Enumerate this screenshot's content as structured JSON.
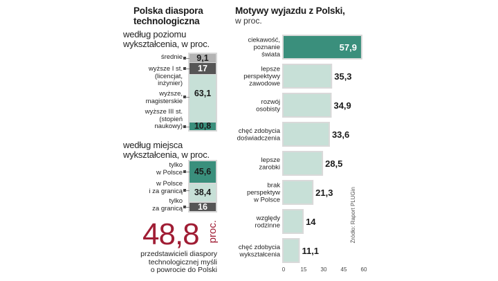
{
  "left": {
    "title_line1": "Polska diaspora",
    "title_line2": "technologiczna",
    "education": {
      "heading_line1": "według poziomu",
      "heading_line2": "wykształcenia, w proc.",
      "items": [
        {
          "label_lines": [
            "średnie"
          ],
          "value": "9,1"
        },
        {
          "label_lines": [
            "wyższe I st.",
            "(licencjat,",
            "inżynier)"
          ],
          "value": "17"
        },
        {
          "label_lines": [
            "wyższe,",
            "magisterskie"
          ],
          "value": "63,1"
        },
        {
          "label_lines": [
            "wyższe III st.",
            "(stopień",
            "naukowy)"
          ],
          "value": "10,8"
        }
      ]
    },
    "location": {
      "heading_line1": "według miejsca",
      "heading_line2": "wykształcenia, w proc.",
      "items": [
        {
          "label_lines": [
            "tylko",
            "w Polsce"
          ],
          "value": "45,6"
        },
        {
          "label_lines": [
            "w Polsce",
            "i za granicą"
          ],
          "value": "38,4"
        },
        {
          "label_lines": [
            "tylko",
            "za granicą"
          ],
          "value": "16"
        }
      ]
    },
    "big_stat": {
      "value": "48,8",
      "unit": "proc.",
      "caption_lines": [
        "przedstawicieli diaspory",
        "technologicznej  myśli",
        "o powrocie do Polski"
      ]
    }
  },
  "chart_data": {
    "type": "bar",
    "title": "Motywy wyjazdu z Polski,",
    "subtitle": "w proc.",
    "categories": [
      [
        "ciekawość,",
        "poznanie",
        "świata"
      ],
      [
        "lepsze",
        "perspektywy",
        "zawodowe"
      ],
      [
        "rozwój",
        "osobisty"
      ],
      [
        "chęć zdobycia",
        "doświadczenia"
      ],
      [
        "lepsze",
        "zarobki"
      ],
      [
        "brak",
        "perspektyw",
        "w Polsce"
      ],
      [
        "względy",
        "rodzinne"
      ],
      [
        "chęć zdobycia",
        "wykształcenia"
      ]
    ],
    "values": [
      57.9,
      35.3,
      34.9,
      33.6,
      28.5,
      21.3,
      14,
      11.1
    ],
    "value_labels": [
      "57,9",
      "35,3",
      "34,9",
      "33,6",
      "28,5",
      "21,3",
      "14",
      "11,1"
    ],
    "xlim": [
      0,
      60
    ],
    "xticks": [
      "0",
      "15",
      "30",
      "45",
      "60"
    ],
    "orientation": "horizontal",
    "highlight_color": "#3a8f7c",
    "bar_color": "#c7e0d7"
  },
  "source": "Źródło: Raport PLUGin",
  "colors": {
    "dark": "#555555",
    "teal": "#3a8f7c",
    "light_teal": "#c7e0d7",
    "grey": "#b3b3b3",
    "red": "#a01d34"
  }
}
